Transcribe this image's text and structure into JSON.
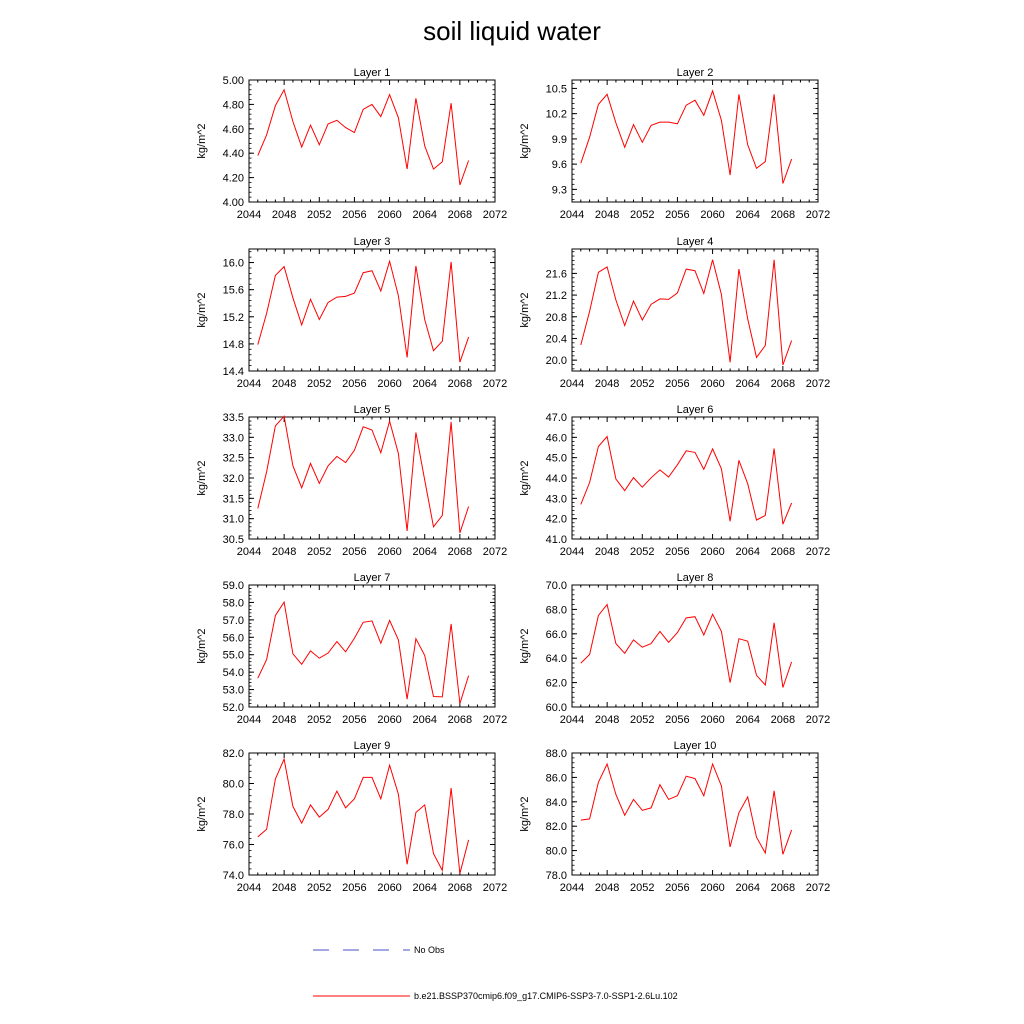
{
  "title": "soil liquid water",
  "colors": {
    "series": "#ff0000",
    "obs": "#4a52c6",
    "axis": "#000000"
  },
  "legend": {
    "obs_label": "No Obs",
    "model_label": "b.e21.BSSP370cmip6.f09_g17.CMIP6-SSP3-7.0-SSP1-2.6Lu.102"
  },
  "chart_data": [
    {
      "type": "line",
      "title": "Layer 1",
      "ylabel": "kg/m^2",
      "xlabel": "",
      "xlim": [
        2044,
        2072
      ],
      "xticks": [
        2044,
        2048,
        2052,
        2056,
        2060,
        2064,
        2068,
        2072
      ],
      "ylim": [
        4.0,
        5.0
      ],
      "yticks": [
        "4.00",
        "4.20",
        "4.40",
        "4.60",
        "4.80",
        "5.00"
      ],
      "x": [
        2045,
        2046,
        2047,
        2048,
        2049,
        2050,
        2051,
        2052,
        2053,
        2054,
        2055,
        2056,
        2057,
        2058,
        2059,
        2060,
        2061,
        2062,
        2063,
        2064,
        2065,
        2066,
        2067,
        2068,
        2069
      ],
      "series": [
        {
          "values": [
            4.38,
            4.55,
            4.79,
            4.92,
            4.66,
            4.45,
            4.63,
            4.47,
            4.64,
            4.67,
            4.61,
            4.57,
            4.76,
            4.8,
            4.7,
            4.88,
            4.69,
            4.27,
            4.85,
            4.46,
            4.27,
            4.33,
            4.81,
            4.14,
            4.34
          ]
        }
      ]
    },
    {
      "type": "line",
      "title": "Layer 2",
      "ylabel": "kg/m^2",
      "xlabel": "",
      "xlim": [
        2044,
        2072
      ],
      "xticks": [
        2044,
        2048,
        2052,
        2056,
        2060,
        2064,
        2068,
        2072
      ],
      "ylim": [
        9.15,
        10.6
      ],
      "yticks": [
        "9.3",
        "9.6",
        "9.9",
        "10.2",
        "10.5"
      ],
      "x": [
        2045,
        2046,
        2047,
        2048,
        2049,
        2050,
        2051,
        2052,
        2053,
        2054,
        2055,
        2056,
        2057,
        2058,
        2059,
        2060,
        2061,
        2062,
        2063,
        2064,
        2065,
        2066,
        2067,
        2068,
        2069
      ],
      "series": [
        {
          "values": [
            9.61,
            9.92,
            10.31,
            10.43,
            10.09,
            9.8,
            10.07,
            9.86,
            10.06,
            10.1,
            10.1,
            10.08,
            10.3,
            10.36,
            10.18,
            10.47,
            10.12,
            9.47,
            10.43,
            9.83,
            9.55,
            9.63,
            10.43,
            9.37,
            9.66
          ]
        }
      ]
    },
    {
      "type": "line",
      "title": "Layer 3",
      "ylabel": "kg/m^2",
      "xlabel": "",
      "xlim": [
        2044,
        2072
      ],
      "xticks": [
        2044,
        2048,
        2052,
        2056,
        2060,
        2064,
        2068,
        2072
      ],
      "ylim": [
        14.4,
        16.2
      ],
      "yticks": [
        "14.4",
        "14.8",
        "15.2",
        "15.6",
        "16.0"
      ],
      "x": [
        2045,
        2046,
        2047,
        2048,
        2049,
        2050,
        2051,
        2052,
        2053,
        2054,
        2055,
        2056,
        2057,
        2058,
        2059,
        2060,
        2061,
        2062,
        2063,
        2064,
        2065,
        2066,
        2067,
        2068,
        2069
      ],
      "series": [
        {
          "values": [
            14.79,
            15.25,
            15.81,
            15.94,
            15.48,
            15.08,
            15.46,
            15.16,
            15.41,
            15.49,
            15.5,
            15.55,
            15.85,
            15.88,
            15.58,
            16.02,
            15.51,
            14.6,
            15.95,
            15.16,
            14.7,
            14.84,
            16.01,
            14.53,
            14.9
          ]
        }
      ]
    },
    {
      "type": "line",
      "title": "Layer 4",
      "ylabel": "kg/m^2",
      "xlabel": "",
      "xlim": [
        2044,
        2072
      ],
      "xticks": [
        2044,
        2048,
        2052,
        2056,
        2060,
        2064,
        2068,
        2072
      ],
      "ylim": [
        19.8,
        22.05
      ],
      "yticks": [
        "20.0",
        "20.4",
        "20.8",
        "21.2",
        "21.6"
      ],
      "x": [
        2045,
        2046,
        2047,
        2048,
        2049,
        2050,
        2051,
        2052,
        2053,
        2054,
        2055,
        2056,
        2057,
        2058,
        2059,
        2060,
        2061,
        2062,
        2063,
        2064,
        2065,
        2066,
        2067,
        2068,
        2069
      ],
      "series": [
        {
          "values": [
            20.28,
            20.9,
            21.62,
            21.72,
            21.11,
            20.64,
            21.09,
            20.74,
            21.03,
            21.13,
            21.12,
            21.24,
            21.68,
            21.65,
            21.23,
            21.85,
            21.21,
            19.96,
            21.68,
            20.76,
            20.05,
            20.27,
            21.85,
            19.91,
            20.36
          ]
        }
      ]
    },
    {
      "type": "line",
      "title": "Layer 5",
      "ylabel": "kg/m^2",
      "xlabel": "",
      "xlim": [
        2044,
        2072
      ],
      "xticks": [
        2044,
        2048,
        2052,
        2056,
        2060,
        2064,
        2068,
        2072
      ],
      "ylim": [
        30.5,
        33.5
      ],
      "yticks": [
        "30.5",
        "31.0",
        "31.5",
        "32.0",
        "32.5",
        "33.0",
        "33.5"
      ],
      "x": [
        2045,
        2046,
        2047,
        2048,
        2049,
        2050,
        2051,
        2052,
        2053,
        2054,
        2055,
        2056,
        2057,
        2058,
        2059,
        2060,
        2061,
        2062,
        2063,
        2064,
        2065,
        2066,
        2067,
        2068,
        2069
      ],
      "series": [
        {
          "values": [
            31.25,
            32.15,
            33.28,
            33.52,
            32.3,
            31.76,
            32.36,
            31.87,
            32.3,
            32.53,
            32.38,
            32.68,
            33.26,
            33.18,
            32.62,
            33.4,
            32.6,
            30.7,
            33.12,
            31.95,
            30.8,
            31.08,
            33.38,
            30.65,
            31.3
          ]
        }
      ]
    },
    {
      "type": "line",
      "title": "Layer 6",
      "ylabel": "kg/m^2",
      "xlabel": "",
      "xlim": [
        2044,
        2072
      ],
      "xticks": [
        2044,
        2048,
        2052,
        2056,
        2060,
        2064,
        2068,
        2072
      ],
      "ylim": [
        41.0,
        47.0
      ],
      "yticks": [
        "41.0",
        "42.0",
        "43.0",
        "44.0",
        "45.0",
        "46.0",
        "47.0"
      ],
      "x": [
        2045,
        2046,
        2047,
        2048,
        2049,
        2050,
        2051,
        2052,
        2053,
        2054,
        2055,
        2056,
        2057,
        2058,
        2059,
        2060,
        2061,
        2062,
        2063,
        2064,
        2065,
        2066,
        2067,
        2068,
        2069
      ],
      "series": [
        {
          "values": [
            42.7,
            43.78,
            45.55,
            46.04,
            43.95,
            43.38,
            44.02,
            43.55,
            44.01,
            44.4,
            44.05,
            44.65,
            45.34,
            45.26,
            44.43,
            45.43,
            44.45,
            41.87,
            44.87,
            43.72,
            41.93,
            42.16,
            45.45,
            41.73,
            42.77
          ]
        }
      ]
    },
    {
      "type": "line",
      "title": "Layer 7",
      "ylabel": "kg/m^2",
      "xlabel": "",
      "xlim": [
        2044,
        2072
      ],
      "xticks": [
        2044,
        2048,
        2052,
        2056,
        2060,
        2064,
        2068,
        2072
      ],
      "ylim": [
        52.0,
        59.0
      ],
      "yticks": [
        "52.0",
        "53.0",
        "54.0",
        "55.0",
        "56.0",
        "57.0",
        "58.0",
        "59.0"
      ],
      "x": [
        2045,
        2046,
        2047,
        2048,
        2049,
        2050,
        2051,
        2052,
        2053,
        2054,
        2055,
        2056,
        2057,
        2058,
        2059,
        2060,
        2061,
        2062,
        2063,
        2064,
        2065,
        2066,
        2067,
        2068,
        2069
      ],
      "series": [
        {
          "values": [
            53.65,
            54.72,
            57.25,
            58.02,
            55.05,
            54.45,
            55.22,
            54.8,
            55.1,
            55.75,
            55.17,
            55.94,
            56.86,
            56.94,
            55.66,
            56.97,
            55.85,
            52.45,
            55.92,
            54.96,
            52.6,
            52.58,
            56.77,
            52.2,
            53.8
          ]
        }
      ]
    },
    {
      "type": "line",
      "title": "Layer 8",
      "ylabel": "kg/m^2",
      "xlabel": "",
      "xlim": [
        2044,
        2072
      ],
      "xticks": [
        2044,
        2048,
        2052,
        2056,
        2060,
        2064,
        2068,
        2072
      ],
      "ylim": [
        60.0,
        70.0
      ],
      "yticks": [
        "60.0",
        "62.0",
        "64.0",
        "66.0",
        "68.0",
        "70.0"
      ],
      "x": [
        2045,
        2046,
        2047,
        2048,
        2049,
        2050,
        2051,
        2052,
        2053,
        2054,
        2055,
        2056,
        2057,
        2058,
        2059,
        2060,
        2061,
        2062,
        2063,
        2064,
        2065,
        2066,
        2067,
        2068,
        2069
      ],
      "series": [
        {
          "values": [
            63.6,
            64.3,
            67.5,
            68.4,
            65.2,
            64.4,
            65.5,
            64.9,
            65.2,
            66.2,
            65.3,
            66.1,
            67.3,
            67.4,
            65.9,
            67.6,
            66.2,
            62.0,
            65.6,
            65.4,
            62.6,
            61.8,
            66.9,
            61.6,
            63.7
          ]
        }
      ]
    },
    {
      "type": "line",
      "title": "Layer 9",
      "ylabel": "kg/m^2",
      "xlabel": "",
      "xlim": [
        2044,
        2072
      ],
      "xticks": [
        2044,
        2048,
        2052,
        2056,
        2060,
        2064,
        2068,
        2072
      ],
      "ylim": [
        74.0,
        82.0
      ],
      "yticks": [
        "74.0",
        "76.0",
        "78.0",
        "80.0",
        "82.0"
      ],
      "x": [
        2045,
        2046,
        2047,
        2048,
        2049,
        2050,
        2051,
        2052,
        2053,
        2054,
        2055,
        2056,
        2057,
        2058,
        2059,
        2060,
        2061,
        2062,
        2063,
        2064,
        2065,
        2066,
        2067,
        2068,
        2069
      ],
      "series": [
        {
          "values": [
            76.5,
            77.0,
            80.3,
            81.6,
            78.5,
            77.4,
            78.6,
            77.8,
            78.3,
            79.5,
            78.4,
            79.0,
            80.4,
            80.4,
            79.0,
            81.2,
            79.3,
            74.7,
            78.1,
            78.6,
            75.4,
            74.3,
            79.7,
            74.1,
            76.3
          ]
        }
      ]
    },
    {
      "type": "line",
      "title": "Layer 10",
      "ylabel": "kg/m^2",
      "xlabel": "",
      "xlim": [
        2044,
        2072
      ],
      "xticks": [
        2044,
        2048,
        2052,
        2056,
        2060,
        2064,
        2068,
        2072
      ],
      "ylim": [
        78.0,
        88.0
      ],
      "yticks": [
        "78.0",
        "80.0",
        "82.0",
        "84.0",
        "86.0",
        "88.0"
      ],
      "x": [
        2045,
        2046,
        2047,
        2048,
        2049,
        2050,
        2051,
        2052,
        2053,
        2054,
        2055,
        2056,
        2057,
        2058,
        2059,
        2060,
        2061,
        2062,
        2063,
        2064,
        2065,
        2066,
        2067,
        2068,
        2069
      ],
      "series": [
        {
          "values": [
            82.5,
            82.6,
            85.6,
            87.1,
            84.6,
            82.9,
            84.2,
            83.3,
            83.5,
            85.4,
            84.2,
            84.5,
            86.1,
            85.9,
            84.5,
            87.1,
            85.3,
            80.3,
            83.1,
            84.4,
            81.1,
            79.8,
            84.9,
            79.7,
            81.7
          ]
        }
      ]
    }
  ]
}
